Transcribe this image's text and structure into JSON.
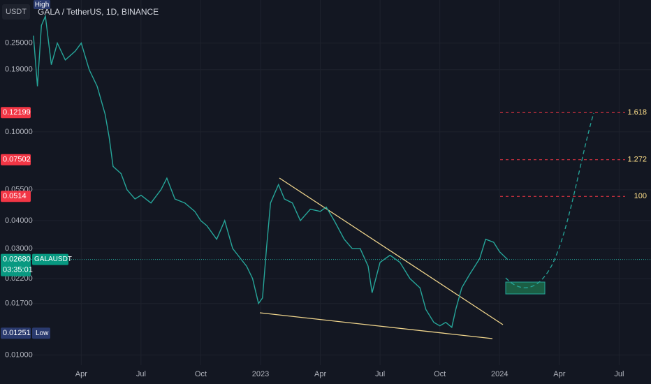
{
  "chart_data": {
    "type": "line",
    "title": "GALA / TetherUS, 1D, BINANCE",
    "y_unit": "USDT",
    "log_scale": true,
    "grid": true,
    "color": "#26a69a",
    "x": [
      0.6,
      0.8,
      1.0,
      1.2,
      1.5,
      1.8,
      2.2,
      2.7,
      3.0,
      3.4,
      3.8,
      4.2,
      4.4,
      4.6,
      5.0,
      5.3,
      5.7,
      6.0,
      6.5,
      7.0,
      7.3,
      7.7,
      8.2,
      8.7,
      9.0,
      9.3,
      9.8,
      10.2,
      10.6,
      11.0,
      11.3,
      11.6,
      11.9,
      12.1,
      12.3,
      12.5,
      12.9,
      13.2,
      13.6,
      14.0,
      14.5,
      15.0,
      15.3,
      15.7,
      16.2,
      16.6,
      17.0,
      17.4,
      17.6,
      18.0,
      18.5,
      19.0,
      19.5,
      20.0,
      20.3,
      20.7,
      21.0,
      21.3,
      21.6,
      21.8,
      22.1,
      22.5,
      23.0,
      23.3,
      23.7,
      24.0,
      24.4
    ],
    "values": [
      0.27,
      0.16,
      0.3,
      0.33,
      0.2,
      0.25,
      0.21,
      0.23,
      0.25,
      0.19,
      0.16,
      0.12,
      0.095,
      0.07,
      0.065,
      0.055,
      0.05,
      0.052,
      0.048,
      0.055,
      0.062,
      0.05,
      0.048,
      0.044,
      0.04,
      0.038,
      0.033,
      0.04,
      0.03,
      0.027,
      0.025,
      0.022,
      0.017,
      0.018,
      0.03,
      0.048,
      0.058,
      0.05,
      0.048,
      0.04,
      0.045,
      0.044,
      0.046,
      0.04,
      0.033,
      0.03,
      0.03,
      0.025,
      0.019,
      0.026,
      0.028,
      0.026,
      0.022,
      0.02,
      0.016,
      0.014,
      0.0135,
      0.014,
      0.0133,
      0.016,
      0.02,
      0.023,
      0.027,
      0.033,
      0.032,
      0.029,
      0.0268
    ],
    "xlim": [
      0.5,
      31.6
    ],
    "ylim": [
      0.009,
      0.39
    ],
    "xticks": [
      {
        "value": 3,
        "label": "Apr"
      },
      {
        "value": 6,
        "label": "Jul"
      },
      {
        "value": 9,
        "label": "Oct"
      },
      {
        "value": 12,
        "label": "2023"
      },
      {
        "value": 15,
        "label": "Apr"
      },
      {
        "value": 18,
        "label": "Jul"
      },
      {
        "value": 21,
        "label": "Oct"
      },
      {
        "value": 24,
        "label": "2024"
      },
      {
        "value": 27,
        "label": "Apr"
      },
      {
        "value": 30,
        "label": "Jul"
      }
    ],
    "yticks": [
      {
        "value": 0.25,
        "label": "0.25000"
      },
      {
        "value": 0.19,
        "label": "0.19000"
      },
      {
        "value": 0.1,
        "label": "0.10000"
      },
      {
        "value": 0.055,
        "label": "0.05500"
      },
      {
        "value": 0.04,
        "label": "0.04000"
      },
      {
        "value": 0.03,
        "label": "0.03000"
      },
      {
        "value": 0.022,
        "label": "0.02200"
      },
      {
        "value": 0.017,
        "label": "0.01700"
      },
      {
        "value": 0.01,
        "label": "0.01000"
      }
    ],
    "fib_levels": [
      {
        "price": 0.12199,
        "label": "1.618"
      },
      {
        "price": 0.07502,
        "label": "1.272"
      },
      {
        "price": 0.0514,
        "label": "100"
      }
    ],
    "current": {
      "symbol": "GALAUSDT",
      "price": 0.0268,
      "price_label": "0.02680",
      "countdown": "03:35:01"
    },
    "low": {
      "price": 0.01251,
      "label": "Low"
    },
    "high_label": "High"
  }
}
